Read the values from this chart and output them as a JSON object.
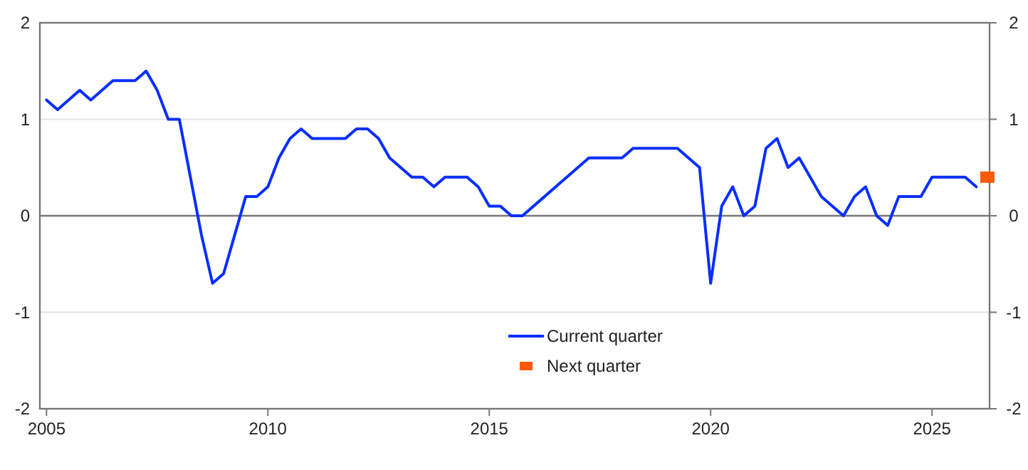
{
  "chart_data": {
    "type": "line",
    "series": [
      {
        "name": "Current quarter",
        "color": "#0a2eff",
        "x": [
          2005.0,
          2005.25,
          2005.75,
          2006.0,
          2006.5,
          2007.0,
          2007.25,
          2007.5,
          2007.75,
          2008.0,
          2008.5,
          2008.75,
          2009.0,
          2009.5,
          2009.75,
          2010.0,
          2010.25,
          2010.5,
          2010.75,
          2011.0,
          2011.75,
          2012.0,
          2012.25,
          2012.5,
          2012.75,
          2013.25,
          2013.5,
          2013.75,
          2014.0,
          2014.5,
          2014.75,
          2015.0,
          2015.25,
          2015.5,
          2015.75,
          2017.25,
          2018.0,
          2018.25,
          2019.25,
          2019.75,
          2020.0,
          2020.25,
          2020.5,
          2020.75,
          2021.0,
          2021.25,
          2021.5,
          2021.75,
          2022.0,
          2022.5,
          2023.0,
          2023.25,
          2023.5,
          2023.75,
          2024.0,
          2024.25,
          2024.75,
          2025.0,
          2025.75,
          2026.0
        ],
        "values": [
          1.2,
          1.1,
          1.3,
          1.2,
          1.4,
          1.4,
          1.5,
          1.3,
          1.0,
          1.0,
          -0.2,
          -0.7,
          -0.6,
          0.2,
          0.2,
          0.3,
          0.6,
          0.8,
          0.9,
          0.8,
          0.8,
          0.9,
          0.9,
          0.8,
          0.6,
          0.4,
          0.4,
          0.3,
          0.4,
          0.4,
          0.3,
          0.1,
          0.1,
          0,
          0,
          0.6,
          0.6,
          0.7,
          0.7,
          0.5,
          -0.7,
          0.1,
          0.3,
          0,
          0.1,
          0.7,
          0.8,
          0.5,
          0.6,
          0.2,
          0,
          0.2,
          0.3,
          0,
          -0.1,
          0.2,
          0.2,
          0.4,
          0.4,
          0.3
        ]
      },
      {
        "name": "Next quarter",
        "type": "scatter",
        "marker": "square",
        "color": "#ff5a0a",
        "x": [
          2026.25
        ],
        "values": [
          0.4
        ]
      }
    ],
    "xlim": [
      2004.85,
      2026.3
    ],
    "xticks": [
      2005,
      2010,
      2015,
      2020,
      2025
    ],
    "ylim": [
      -2,
      2
    ],
    "yticks": [
      -2,
      -1,
      0,
      1,
      2
    ],
    "y2lim": [
      -2,
      2
    ],
    "y2ticks": [
      -2,
      -1,
      0,
      1,
      2
    ],
    "ref_lines": [
      {
        "axis": "y",
        "value": 0
      }
    ],
    "grid": "y",
    "legend": "bottom",
    "line_style": "solid",
    "marker": "none"
  }
}
